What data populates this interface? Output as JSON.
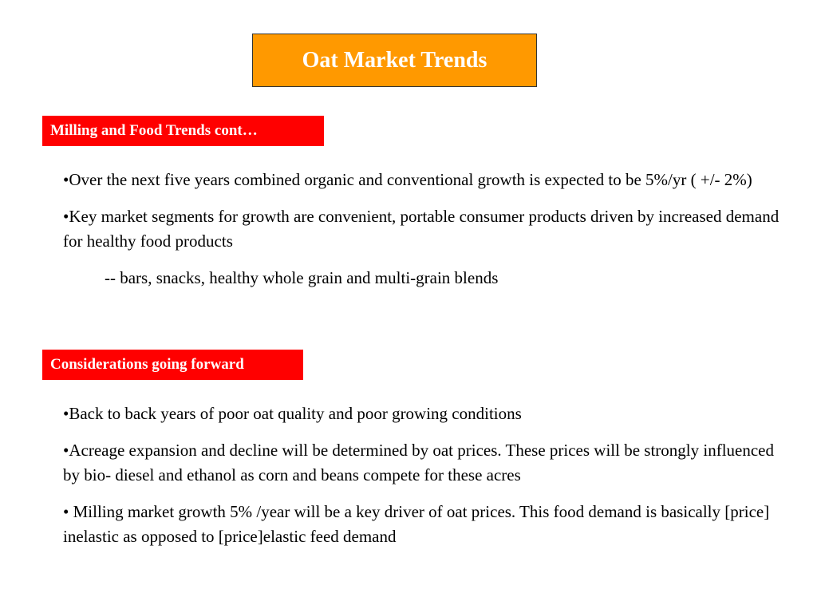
{
  "slide": {
    "title": "Oat Market Trends"
  },
  "sections": [
    {
      "label": "Milling and Food Trends cont…",
      "items": [
        "•Over the next five years combined organic and conventional growth is expected to be 5%/yr ( +/- 2%)",
        "•Key market segments for growth  are convenient, portable consumer products driven by increased demand for healthy food products",
        "-- bars, snacks, healthy whole grain and multi-grain blends"
      ]
    },
    {
      "label": "Considerations going forward",
      "items": [
        "•Back to back years of  poor oat quality and  poor growing conditions",
        "•Acreage expansion and decline will be determined by oat prices. These prices will be strongly influenced  by bio- diesel and ethanol as corn and beans compete for these acres",
        "• Milling market growth 5% /year  will be a key driver of  oat prices. This food demand is basically [price] inelastic as opposed to [price]elastic feed demand"
      ]
    }
  ],
  "colors": {
    "title_background": "#ff9900",
    "label_background": "#ff0000",
    "label_text": "#ffffff"
  }
}
